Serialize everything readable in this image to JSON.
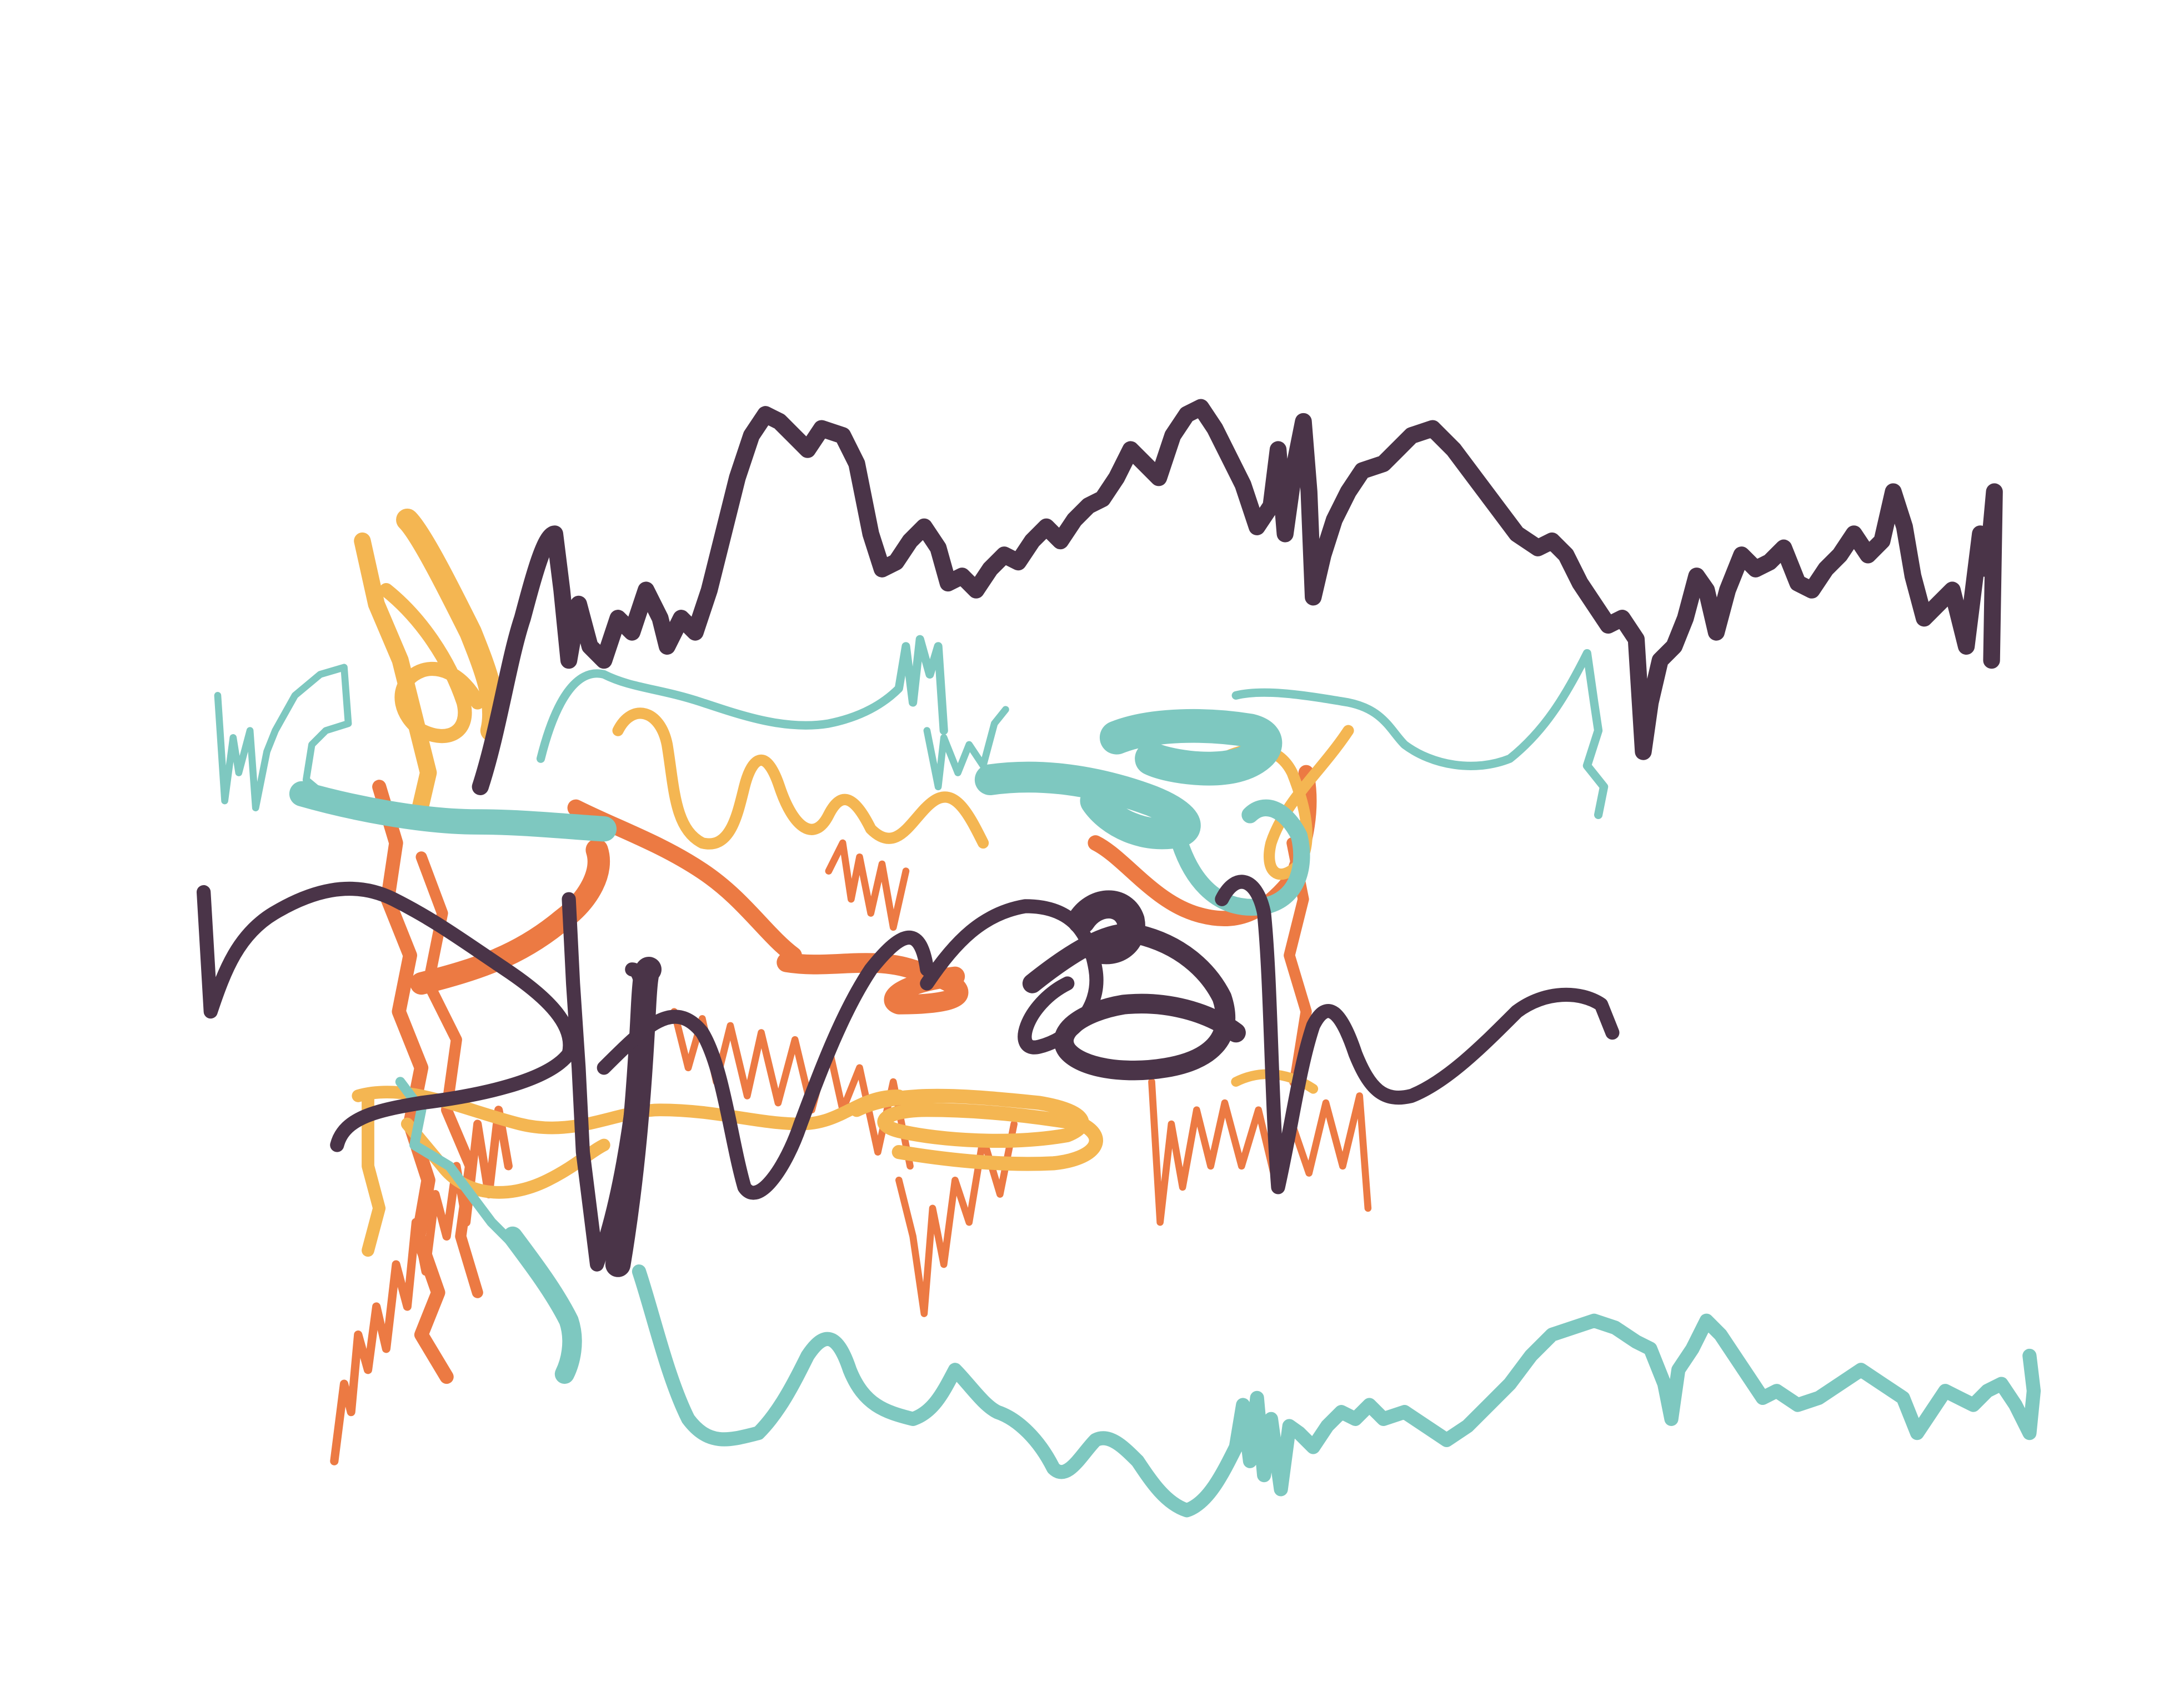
{
  "scene": {
    "background": "#ffffff",
    "palette": {
      "plum": "#4a3448",
      "teal": "#7ec8c0",
      "gold": "#f4b652",
      "orange": "#ec7a43"
    },
    "ribbons": [
      {
        "name": "plum-top-trace",
        "color_key": "plum"
      },
      {
        "name": "plum-middle-trace",
        "color_key": "plum"
      },
      {
        "name": "teal-upper-trace",
        "color_key": "teal"
      },
      {
        "name": "teal-bottom-trace",
        "color_key": "teal"
      },
      {
        "name": "gold-tangle",
        "color_key": "gold"
      },
      {
        "name": "orange-tangle",
        "color_key": "orange"
      }
    ]
  }
}
